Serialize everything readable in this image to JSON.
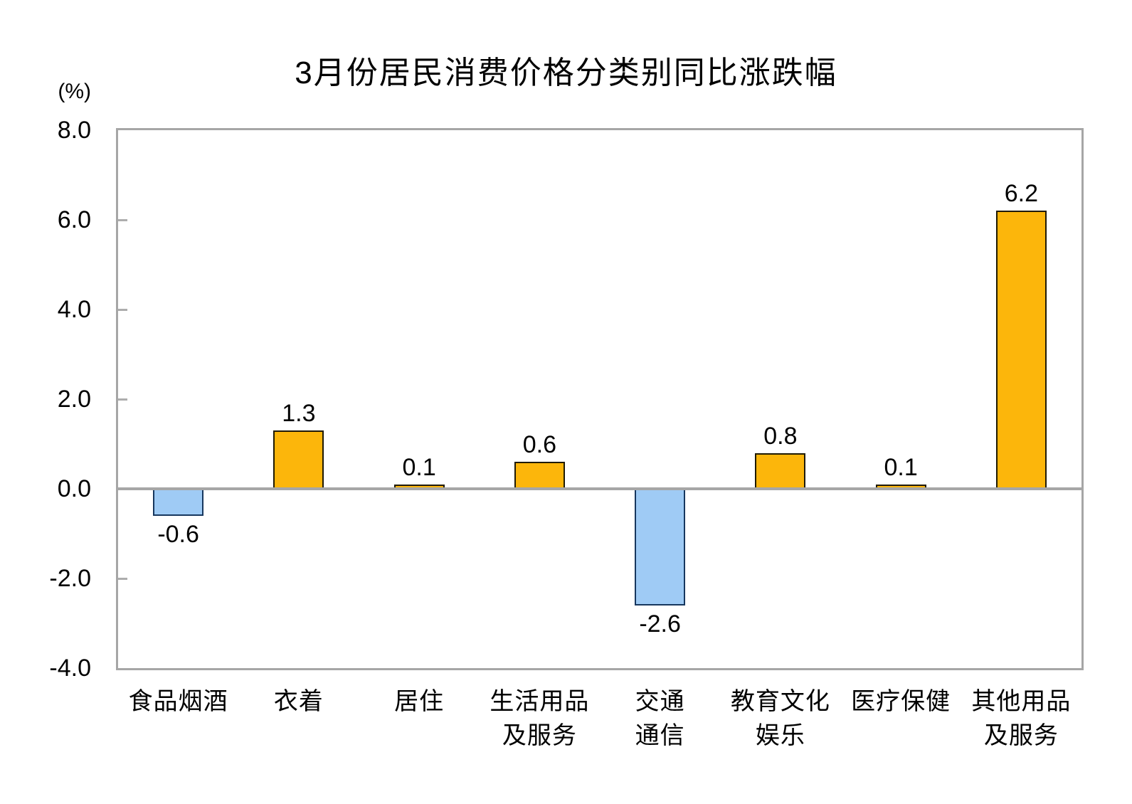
{
  "title": "3月份居民消费价格分类别同比涨跌幅",
  "unit_label": "(%)",
  "chart_data": {
    "type": "bar",
    "title": "3月份居民消费价格分类别同比涨跌幅",
    "ylabel": "(%)",
    "categories": [
      "食品烟酒",
      "衣着",
      "居住",
      "生活用品\n及服务",
      "交通\n通信",
      "教育文化\n娱乐",
      "医疗保健",
      "其他用品\n及服务"
    ],
    "values": [
      -0.6,
      1.3,
      0.1,
      0.6,
      -2.6,
      0.8,
      0.1,
      6.2
    ],
    "data_labels": [
      "-0.6",
      "1.3",
      "0.1",
      "0.6",
      "-2.6",
      "0.8",
      "0.1",
      "6.2"
    ],
    "ylim": [
      -4.0,
      8.0
    ],
    "yticks": [
      8.0,
      6.0,
      4.0,
      2.0,
      0.0,
      -2.0,
      -4.0
    ],
    "ytick_labels": [
      "8.0",
      "6.0",
      "4.0",
      "2.0",
      "0.0",
      "-2.0",
      "-4.0"
    ],
    "grid": false,
    "legend": "none",
    "positive_color": "#FCB60B",
    "positive_border": "#1F1A00",
    "negative_color": "#9FCBF5",
    "negative_border": "#17375E",
    "axis_color": "#A6A6A6",
    "text_color": "#000000"
  }
}
